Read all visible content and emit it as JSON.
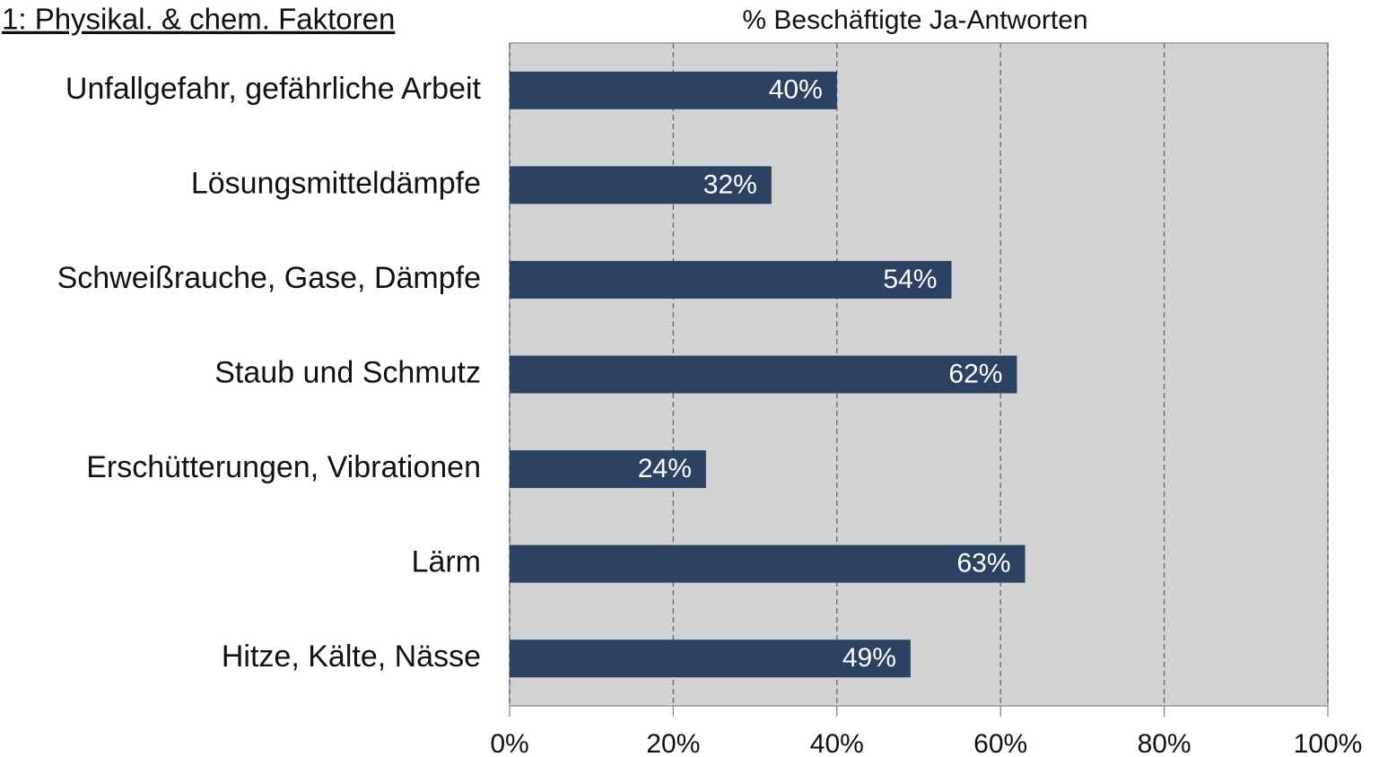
{
  "chart_data": {
    "type": "barh",
    "title": "1: Physikal. & chem. Faktoren",
    "x_label": "% Beschäftigte Ja-Antworten",
    "categories": [
      "Unfallgefahr, gefährliche Arbeit",
      "Lösungsmitteldämpfe",
      "Schweißrauche, Gase, Dämpfe",
      "Staub und Schmutz",
      "Erschütterungen, Vibrationen",
      "Lärm",
      "Hitze, Kälte, Nässe"
    ],
    "values": [
      40,
      32,
      54,
      62,
      24,
      63,
      49
    ],
    "value_labels": [
      "40%",
      "32%",
      "54%",
      "62%",
      "24%",
      "63%",
      "49%"
    ],
    "color": "#2d4263",
    "xlim": [
      0,
      100
    ],
    "xticks": [
      {
        "value": 0,
        "label": "0%"
      },
      {
        "value": 20,
        "label": "20%"
      },
      {
        "value": 40,
        "label": "40%"
      },
      {
        "value": 60,
        "label": "60%"
      },
      {
        "value": 80,
        "label": "80%"
      },
      {
        "value": 100,
        "label": "100%"
      }
    ],
    "grid": true
  }
}
